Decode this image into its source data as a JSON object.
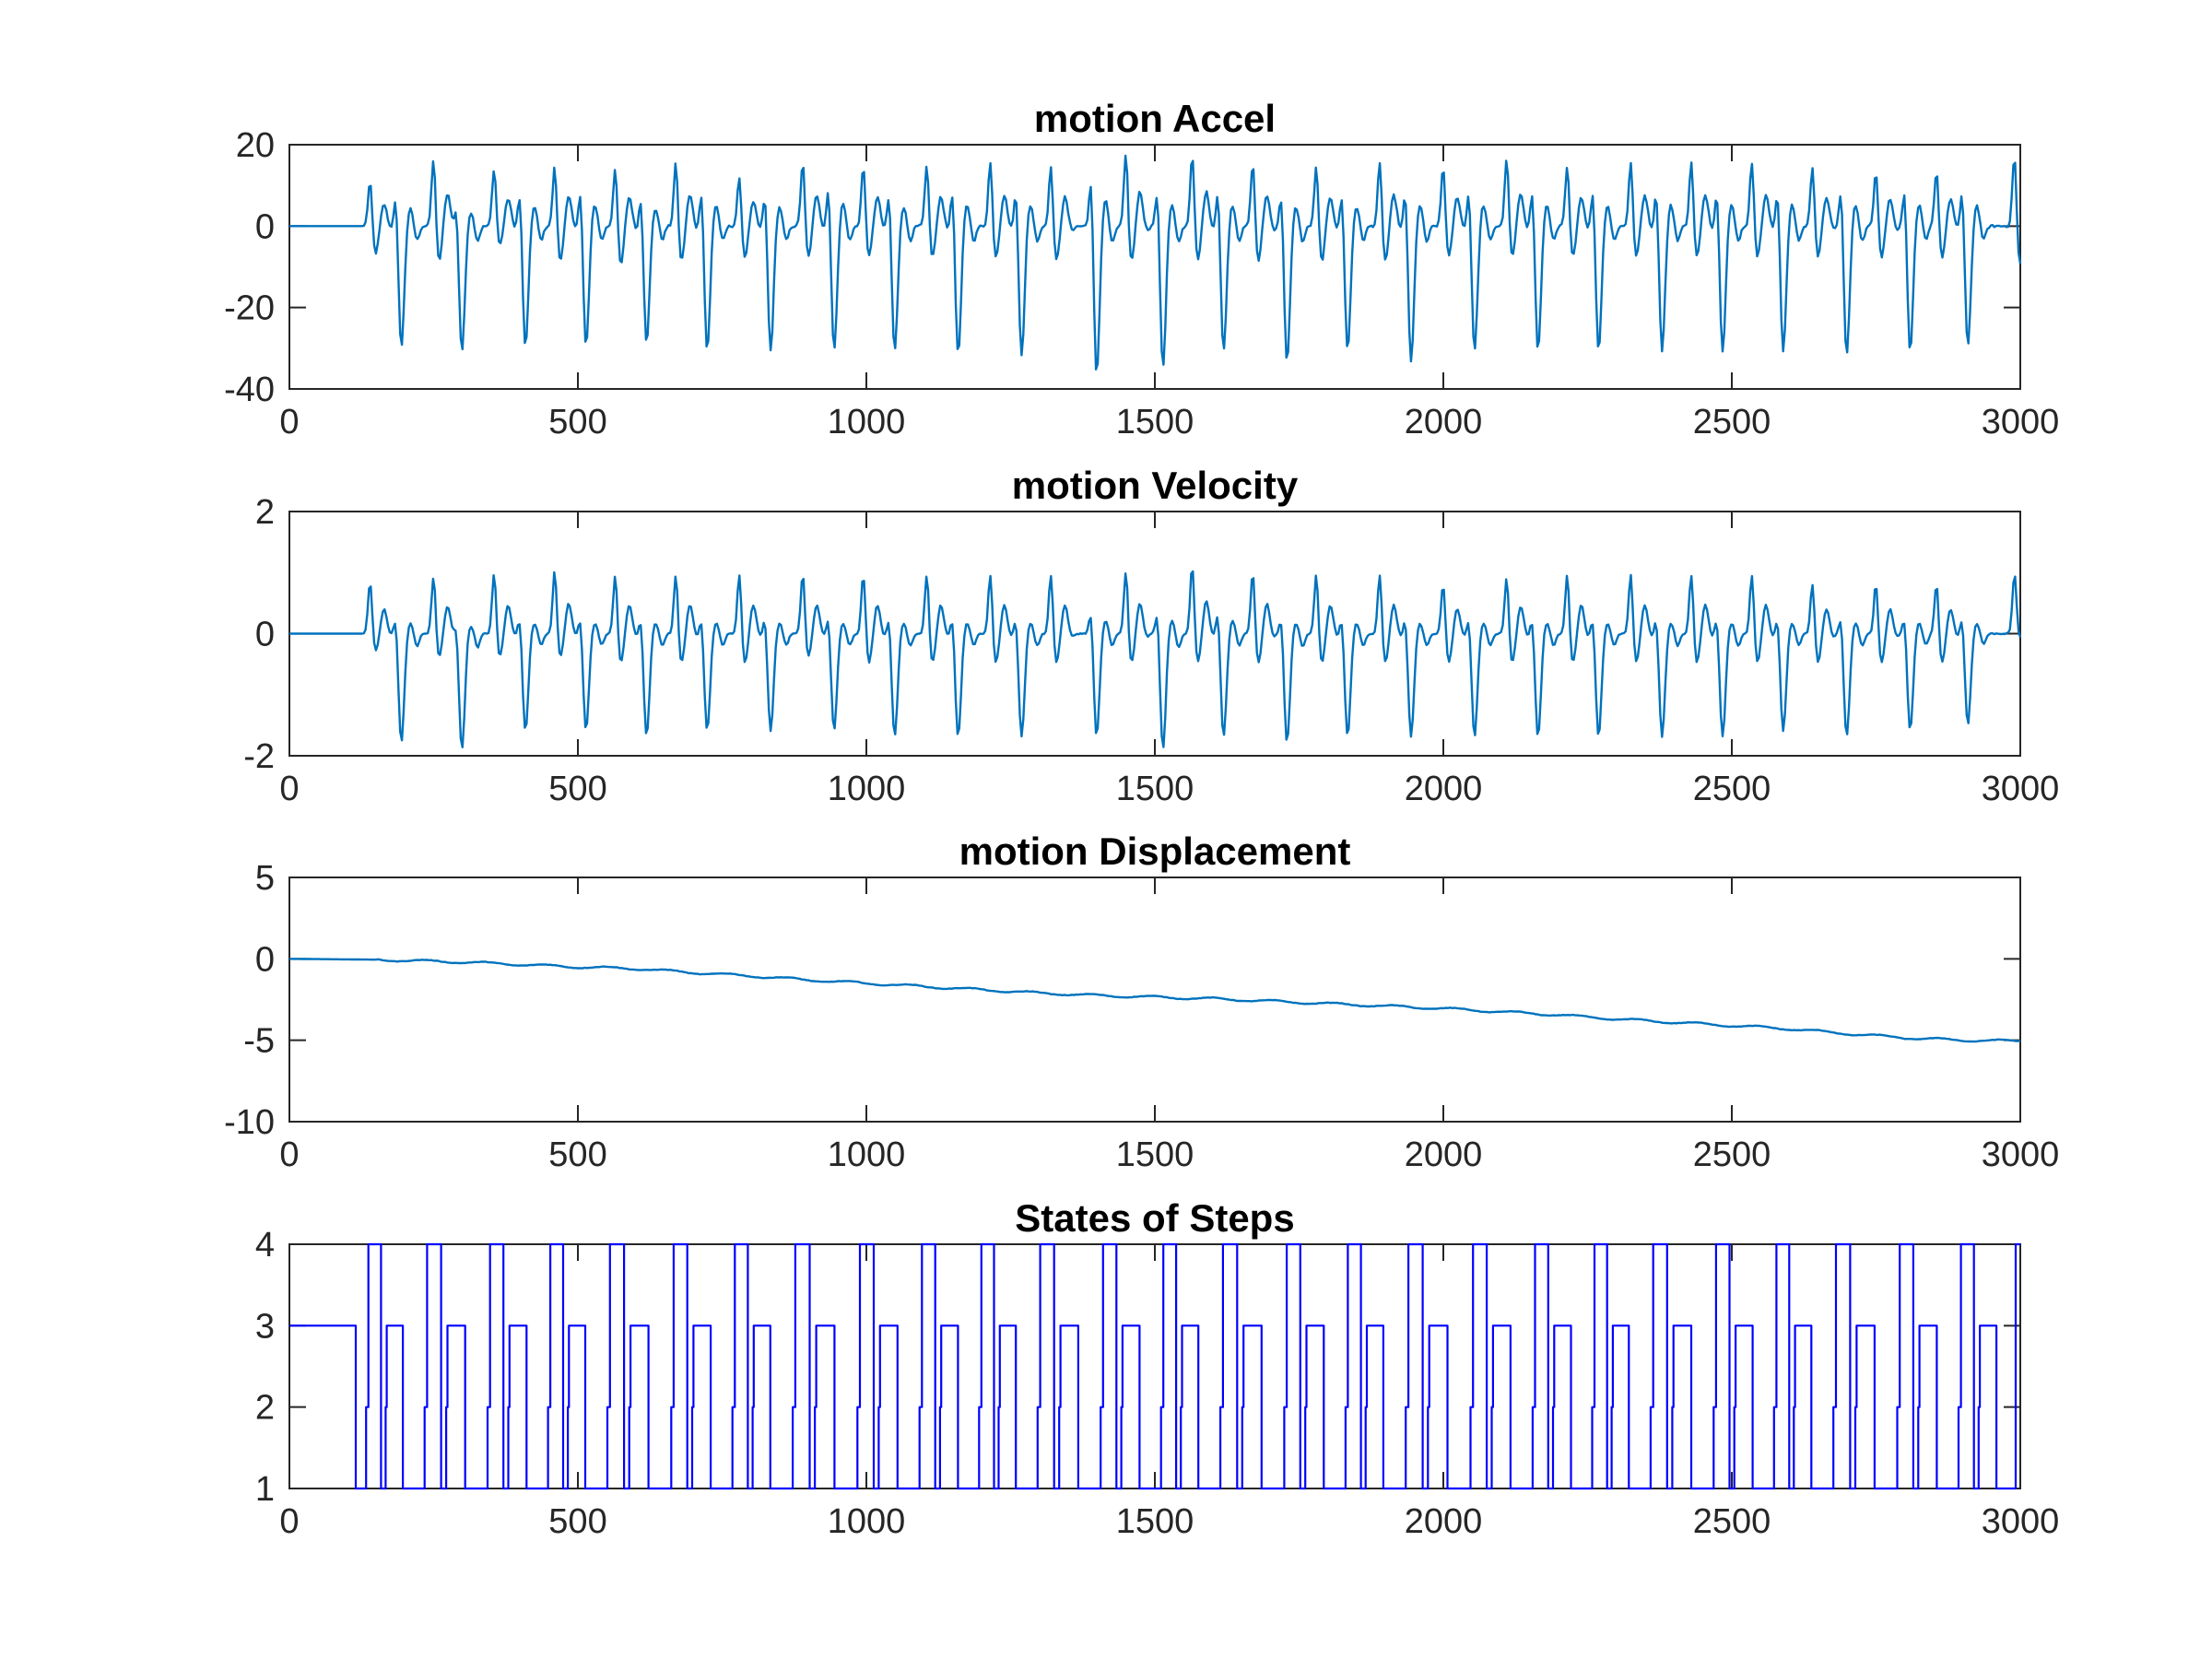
{
  "figure": {
    "background": "#ffffff",
    "axis_color": "#262626"
  },
  "chart_data": [
    {
      "type": "line",
      "title": "motion Accel",
      "xlabel": "",
      "ylabel": "",
      "xlim": [
        0,
        3000
      ],
      "ylim": [
        -40,
        20
      ],
      "xticks": [
        0,
        500,
        1000,
        1500,
        2000,
        2500,
        3000
      ],
      "yticks": [
        -40,
        -20,
        0,
        20
      ],
      "color": "#0072BD",
      "grid": false,
      "series": [
        {
          "style": "spike_train",
          "baseline": 0,
          "flat_until": 130,
          "noise": 0.3,
          "steps": [
            {
              "x": 140,
              "peak": 12,
              "trough": -7
            },
            {
              "x": 185,
              "peak": 10,
              "trough": -30
            },
            {
              "x": 250,
              "peak": 18,
              "trough": -9
            },
            {
              "x": 290,
              "peak": 8,
              "trough": -31
            },
            {
              "x": 355,
              "peak": 15,
              "trough": -5
            },
            {
              "x": 400,
              "peak": 11,
              "trough": -30
            },
            {
              "x": 460,
              "peak": 16,
              "trough": -9
            },
            {
              "x": 505,
              "peak": 12,
              "trough": -30
            },
            {
              "x": 565,
              "peak": 16,
              "trough": -10
            },
            {
              "x": 610,
              "peak": 10,
              "trough": -29
            },
            {
              "x": 670,
              "peak": 17,
              "trough": -9
            },
            {
              "x": 715,
              "peak": 12,
              "trough": -31
            },
            {
              "x": 780,
              "peak": 13,
              "trough": -8
            },
            {
              "x": 825,
              "peak": 11,
              "trough": -31
            },
            {
              "x": 890,
              "peak": 17,
              "trough": -8
            },
            {
              "x": 935,
              "peak": 13,
              "trough": -31
            },
            {
              "x": 995,
              "peak": 16,
              "trough": -8
            },
            {
              "x": 1040,
              "peak": 11,
              "trough": -31
            },
            {
              "x": 1105,
              "peak": 16,
              "trough": -8
            },
            {
              "x": 1150,
              "peak": 12,
              "trough": -32
            },
            {
              "x": 1215,
              "peak": 17,
              "trough": -8
            },
            {
              "x": 1260,
              "peak": 12,
              "trough": -32
            },
            {
              "x": 1320,
              "peak": 16,
              "trough": -9
            },
            {
              "x": 1390,
              "peak": 15,
              "trough": -37
            },
            {
              "x": 1450,
              "peak": 19,
              "trough": -9
            },
            {
              "x": 1505,
              "peak": 12,
              "trough": -35
            },
            {
              "x": 1565,
              "peak": 19,
              "trough": -9
            },
            {
              "x": 1610,
              "peak": 12,
              "trough": -31
            },
            {
              "x": 1670,
              "peak": 17,
              "trough": -9
            },
            {
              "x": 1720,
              "peak": 11,
              "trough": -34
            },
            {
              "x": 1780,
              "peak": 16,
              "trough": -9
            },
            {
              "x": 1825,
              "peak": 11,
              "trough": -31
            },
            {
              "x": 1890,
              "peak": 17,
              "trough": -9
            },
            {
              "x": 1935,
              "peak": 12,
              "trough": -34
            },
            {
              "x": 2000,
              "peak": 16,
              "trough": -8
            },
            {
              "x": 2045,
              "peak": 12,
              "trough": -31
            },
            {
              "x": 2110,
              "peak": 18,
              "trough": -8
            },
            {
              "x": 2155,
              "peak": 12,
              "trough": -31
            },
            {
              "x": 2215,
              "peak": 16,
              "trough": -8
            },
            {
              "x": 2260,
              "peak": 12,
              "trough": -31
            },
            {
              "x": 2325,
              "peak": 17,
              "trough": -8
            },
            {
              "x": 2370,
              "peak": 12,
              "trough": -31
            },
            {
              "x": 2430,
              "peak": 17,
              "trough": -8
            },
            {
              "x": 2475,
              "peak": 12,
              "trough": -31
            },
            {
              "x": 2535,
              "peak": 17,
              "trough": -8
            },
            {
              "x": 2580,
              "peak": 12,
              "trough": -31
            },
            {
              "x": 2640,
              "peak": 16,
              "trough": -8
            },
            {
              "x": 2690,
              "peak": 12,
              "trough": -32
            },
            {
              "x": 2750,
              "peak": 15,
              "trough": -8
            },
            {
              "x": 2800,
              "peak": 12,
              "trough": -31
            },
            {
              "x": 2855,
              "peak": 15,
              "trough": -8
            },
            {
              "x": 2900,
              "peak": 12,
              "trough": -30
            },
            {
              "x": 2990,
              "peak": 19,
              "trough": -10
            }
          ]
        }
      ]
    },
    {
      "type": "line",
      "title": "motion Velocity",
      "xlabel": "",
      "ylabel": "",
      "xlim": [
        0,
        3000
      ],
      "ylim": [
        -2,
        2
      ],
      "xticks": [
        0,
        500,
        1000,
        1500,
        2000,
        2500,
        3000
      ],
      "yticks": [
        -2,
        0,
        2
      ],
      "color": "#0072BD",
      "grid": false,
      "series": [
        {
          "style": "spike_train",
          "baseline": 0,
          "flat_until": 130,
          "noise": 0.01,
          "steps": [
            {
              "x": 140,
              "peak": 0.9,
              "trough": -0.3
            },
            {
              "x": 185,
              "peak": 0.4,
              "trough": -1.8
            },
            {
              "x": 250,
              "peak": 1.0,
              "trough": -0.4
            },
            {
              "x": 290,
              "peak": 0.3,
              "trough": -1.9
            },
            {
              "x": 355,
              "peak": 1.05,
              "trough": -0.4
            },
            {
              "x": 400,
              "peak": 0.4,
              "trough": -1.6
            },
            {
              "x": 460,
              "peak": 1.1,
              "trough": -0.4
            },
            {
              "x": 505,
              "peak": 0.4,
              "trough": -1.6
            },
            {
              "x": 565,
              "peak": 1.05,
              "trough": -0.5
            },
            {
              "x": 610,
              "peak": 0.4,
              "trough": -1.7
            },
            {
              "x": 670,
              "peak": 1.05,
              "trough": -0.5
            },
            {
              "x": 715,
              "peak": 0.4,
              "trough": -1.6
            },
            {
              "x": 780,
              "peak": 1.05,
              "trough": -0.5
            },
            {
              "x": 825,
              "peak": 0.4,
              "trough": -1.6
            },
            {
              "x": 890,
              "peak": 1.05,
              "trough": -0.4
            },
            {
              "x": 935,
              "peak": 0.4,
              "trough": -1.6
            },
            {
              "x": 995,
              "peak": 1.05,
              "trough": -0.5
            },
            {
              "x": 1040,
              "peak": 0.4,
              "trough": -1.7
            },
            {
              "x": 1105,
              "peak": 1.05,
              "trough": -0.5
            },
            {
              "x": 1150,
              "peak": 0.4,
              "trough": -1.7
            },
            {
              "x": 1215,
              "peak": 1.05,
              "trough": -0.5
            },
            {
              "x": 1260,
              "peak": 0.4,
              "trough": -1.7
            },
            {
              "x": 1320,
              "peak": 1.05,
              "trough": -0.5
            },
            {
              "x": 1390,
              "peak": 0.5,
              "trough": -1.7
            },
            {
              "x": 1450,
              "peak": 1.1,
              "trough": -0.5
            },
            {
              "x": 1505,
              "peak": 0.5,
              "trough": -1.9
            },
            {
              "x": 1565,
              "peak": 1.2,
              "trough": -0.5
            },
            {
              "x": 1610,
              "peak": 0.5,
              "trough": -1.7
            },
            {
              "x": 1670,
              "peak": 1.1,
              "trough": -0.5
            },
            {
              "x": 1720,
              "peak": 0.4,
              "trough": -1.8
            },
            {
              "x": 1780,
              "peak": 1.05,
              "trough": -0.5
            },
            {
              "x": 1825,
              "peak": 0.4,
              "trough": -1.7
            },
            {
              "x": 1890,
              "peak": 1.05,
              "trough": -0.5
            },
            {
              "x": 1935,
              "peak": 0.4,
              "trough": -1.7
            },
            {
              "x": 2000,
              "peak": 0.9,
              "trough": -0.5
            },
            {
              "x": 2045,
              "peak": 0.4,
              "trough": -1.7
            },
            {
              "x": 2110,
              "peak": 1.0,
              "trough": -0.5
            },
            {
              "x": 2155,
              "peak": 0.4,
              "trough": -1.7
            },
            {
              "x": 2215,
              "peak": 1.05,
              "trough": -0.5
            },
            {
              "x": 2260,
              "peak": 0.4,
              "trough": -1.7
            },
            {
              "x": 2325,
              "peak": 1.05,
              "trough": -0.5
            },
            {
              "x": 2370,
              "peak": 0.4,
              "trough": -1.7
            },
            {
              "x": 2430,
              "peak": 1.05,
              "trough": -0.5
            },
            {
              "x": 2475,
              "peak": 0.4,
              "trough": -1.7
            },
            {
              "x": 2535,
              "peak": 1.05,
              "trough": -0.5
            },
            {
              "x": 2580,
              "peak": 0.4,
              "trough": -1.6
            },
            {
              "x": 2640,
              "peak": 0.9,
              "trough": -0.5
            },
            {
              "x": 2690,
              "peak": 0.4,
              "trough": -1.7
            },
            {
              "x": 2750,
              "peak": 0.9,
              "trough": -0.5
            },
            {
              "x": 2800,
              "peak": 0.4,
              "trough": -1.6
            },
            {
              "x": 2855,
              "peak": 0.9,
              "trough": -0.5
            },
            {
              "x": 2900,
              "peak": 0.4,
              "trough": -1.5
            },
            {
              "x": 2990,
              "peak": 1.0,
              "trough": -0.1
            }
          ]
        }
      ]
    },
    {
      "type": "line",
      "title": "motion Displacement",
      "xlabel": "",
      "ylabel": "",
      "xlim": [
        0,
        3000
      ],
      "ylim": [
        -10,
        5
      ],
      "xticks": [
        0,
        500,
        1000,
        1500,
        2000,
        2500,
        3000
      ],
      "yticks": [
        -10,
        -5,
        0,
        5
      ],
      "color": "#0072BD",
      "grid": false,
      "series": [
        {
          "style": "polyline",
          "ripple": 0.07,
          "ripple_period": 105,
          "x": [
            0,
            150,
            300,
            400,
            500,
            600,
            700,
            800,
            900,
            1000,
            1100,
            1200,
            1300,
            1400,
            1500,
            1600,
            1700,
            1800,
            1900,
            2000,
            2100,
            2200,
            2300,
            2400,
            2500,
            2600,
            2700,
            2800,
            2900,
            3000
          ],
          "y": [
            0,
            -0.05,
            -0.2,
            -0.35,
            -0.5,
            -0.6,
            -0.85,
            -1.05,
            -1.3,
            -1.5,
            -1.7,
            -1.9,
            -2.1,
            -2.25,
            -2.35,
            -2.45,
            -2.6,
            -2.75,
            -2.9,
            -3.05,
            -3.25,
            -3.45,
            -3.7,
            -3.9,
            -4.1,
            -4.3,
            -4.6,
            -4.85,
            -5.0,
            -5.05
          ]
        }
      ]
    },
    {
      "type": "line",
      "title": "States of Steps",
      "xlabel": "",
      "ylabel": "",
      "xlim": [
        0,
        3000
      ],
      "ylim": [
        1,
        4
      ],
      "xticks": [
        0,
        500,
        1000,
        1500,
        2000,
        2500,
        3000
      ],
      "yticks": [
        1,
        2,
        3,
        4
      ],
      "color": "#0000FF",
      "grid": false,
      "series": [
        {
          "style": "state_cycles",
          "initial_state": 3,
          "start": 115,
          "cycle_period": 107,
          "pattern": [
            {
              "state": 1,
              "frac": 0.18
            },
            {
              "state": 2,
              "frac": 0.04
            },
            {
              "state": 4,
              "frac": 0.22
            },
            {
              "state": 1,
              "frac": 0.08
            },
            {
              "state": 2,
              "frac": 0.02
            },
            {
              "state": 3,
              "frac": 0.28
            },
            {
              "state": 1,
              "frac": 0.18
            }
          ],
          "end_state": 4
        }
      ]
    }
  ]
}
